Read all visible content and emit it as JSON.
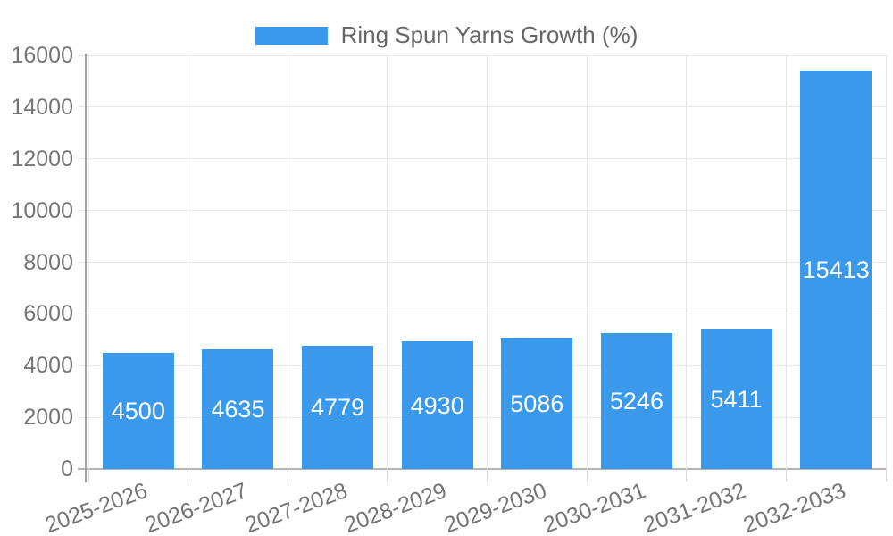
{
  "chart_data": {
    "type": "bar",
    "title": "Ring Spun Yarns Growth (%)",
    "categories": [
      "2025-2026",
      "2026-2027",
      "2027-2028",
      "2028-2029",
      "2029-2030",
      "2030-2031",
      "2031-2032",
      "2032-2033"
    ],
    "values": [
      4500,
      4635,
      4779,
      4930,
      5086,
      5246,
      5411,
      15413
    ],
    "value_labels": [
      "4500",
      "4635",
      "4779",
      "4930",
      "5086",
      "5246",
      "5411",
      "15413"
    ],
    "xlabel": "",
    "ylabel": "",
    "ylim": [
      0,
      16000
    ],
    "ytick_step": 2000,
    "ytick_labels": [
      "0",
      "2000",
      "4000",
      "6000",
      "8000",
      "10000",
      "12000",
      "14000",
      "16000"
    ],
    "grid": true,
    "legend_position": "top",
    "colors": {
      "bar": "#3b99ec",
      "grid": "#e7e7e7",
      "axis": "#a3a3a3",
      "baseline": "#b5b5b5",
      "tick_label": "#757575",
      "legend_text": "#666666",
      "value_label": "#ffffff",
      "background": "#ffffff"
    }
  }
}
